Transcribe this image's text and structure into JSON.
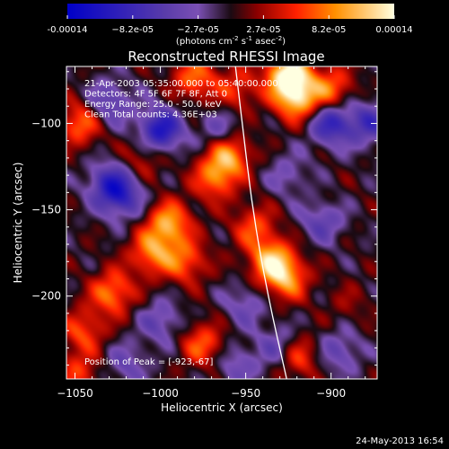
{
  "colorbar": {
    "tick_labels": [
      "-0.00014",
      "−8.2e-05",
      "−2.7e-05",
      "2.7e-05",
      "8.2e-05",
      "0.00014"
    ],
    "units_prefix": "(photons cm",
    "units_exp1": "-2",
    "units_mid": " s",
    "units_exp2": "-1",
    "units_suffix": " asec",
    "units_exp3": "-2",
    "units_close": ")"
  },
  "plot": {
    "title": "Reconstructed RHESSI Image",
    "info_lines": [
      "21-Apr-2003 05:35:00.000 to 05:40:00.000",
      "Detectors: 4F 5F 6F 7F 8F, Att 0",
      "Energy Range: 25.0 - 50.0 keV",
      "Clean     Total counts: 4.36E+03"
    ],
    "peak_label": "Position of Peak = [-923,-67]"
  },
  "footer": {
    "date": "24-May-2013 16:54"
  },
  "chart_data": {
    "type": "heatmap",
    "title": "Reconstructed RHESSI Image",
    "xlabel": "Heliocentric X (arcsec)",
    "ylabel": "Heliocentric Y (arcsec)",
    "xlim": [
      -1055,
      -873
    ],
    "ylim": [
      -248,
      -67
    ],
    "x_ticks": [
      -1050,
      -1000,
      -950,
      -900
    ],
    "x_tick_labels": [
      "−1050",
      "−1000",
      "−950",
      "−900"
    ],
    "y_ticks": [
      -100,
      -150,
      -200
    ],
    "y_tick_labels": [
      "−100",
      "−150",
      "−200"
    ],
    "colorbar_range": [
      -0.00014,
      0.00014
    ],
    "peak_position": [
      -923,
      -67
    ],
    "limb_curve": [
      [
        -956,
        -67
      ],
      [
        -952,
        -100
      ],
      [
        -946,
        -150
      ],
      [
        -937,
        -200
      ],
      [
        -926,
        -248
      ]
    ],
    "grid": false,
    "colormap": [
      "#0000c8",
      "#5a3caa",
      "#7b50b4",
      "#1a0a12",
      "#8a0000",
      "#ff2000",
      "#ff9000",
      "#ffffe0"
    ],
    "features": [
      {
        "x": -925,
        "y": -72,
        "v": 1.0
      },
      {
        "x": -920,
        "y": -86,
        "v": 0.75
      },
      {
        "x": -900,
        "y": -80,
        "v": 0.55
      },
      {
        "x": -980,
        "y": -74,
        "v": 0.55
      },
      {
        "x": -955,
        "y": -80,
        "v": 0.4
      },
      {
        "x": -960,
        "y": -118,
        "v": 0.7
      },
      {
        "x": -968,
        "y": -132,
        "v": 0.55
      },
      {
        "x": -995,
        "y": -158,
        "v": 0.7
      },
      {
        "x": -1005,
        "y": -175,
        "v": 0.6
      },
      {
        "x": -985,
        "y": -180,
        "v": 0.5
      },
      {
        "x": -935,
        "y": -180,
        "v": 0.75
      },
      {
        "x": -926,
        "y": -190,
        "v": 0.6
      },
      {
        "x": -945,
        "y": -160,
        "v": 0.45
      },
      {
        "x": -1047,
        "y": -100,
        "v": 0.55
      },
      {
        "x": -1028,
        "y": -198,
        "v": 0.6
      },
      {
        "x": -1045,
        "y": -220,
        "v": 0.45
      },
      {
        "x": -1048,
        "y": -245,
        "v": 0.4
      },
      {
        "x": -975,
        "y": -228,
        "v": 0.5
      },
      {
        "x": -920,
        "y": -235,
        "v": 0.5
      },
      {
        "x": -1010,
        "y": -120,
        "v": 0.3
      },
      {
        "x": -905,
        "y": -150,
        "v": 0.2
      },
      {
        "x": -890,
        "y": -205,
        "v": 0.15
      },
      {
        "x": -1000,
        "y": -104,
        "v": -0.8
      },
      {
        "x": -1030,
        "y": -88,
        "v": -0.45
      },
      {
        "x": -900,
        "y": -100,
        "v": -0.65
      },
      {
        "x": -878,
        "y": -100,
        "v": -0.5
      },
      {
        "x": -1030,
        "y": -135,
        "v": -0.55
      },
      {
        "x": -1022,
        "y": -143,
        "v": -0.5
      },
      {
        "x": -965,
        "y": -105,
        "v": -0.35
      },
      {
        "x": -905,
        "y": -155,
        "v": -0.55
      },
      {
        "x": -1000,
        "y": -215,
        "v": -0.35
      },
      {
        "x": -930,
        "y": -230,
        "v": -0.4
      },
      {
        "x": -1020,
        "y": -240,
        "v": -0.3
      },
      {
        "x": -955,
        "y": -240,
        "v": -0.3
      },
      {
        "x": -950,
        "y": -205,
        "v": -0.3
      },
      {
        "x": -895,
        "y": -232,
        "v": -0.35
      },
      {
        "x": -925,
        "y": -130,
        "v": -0.25
      }
    ]
  }
}
